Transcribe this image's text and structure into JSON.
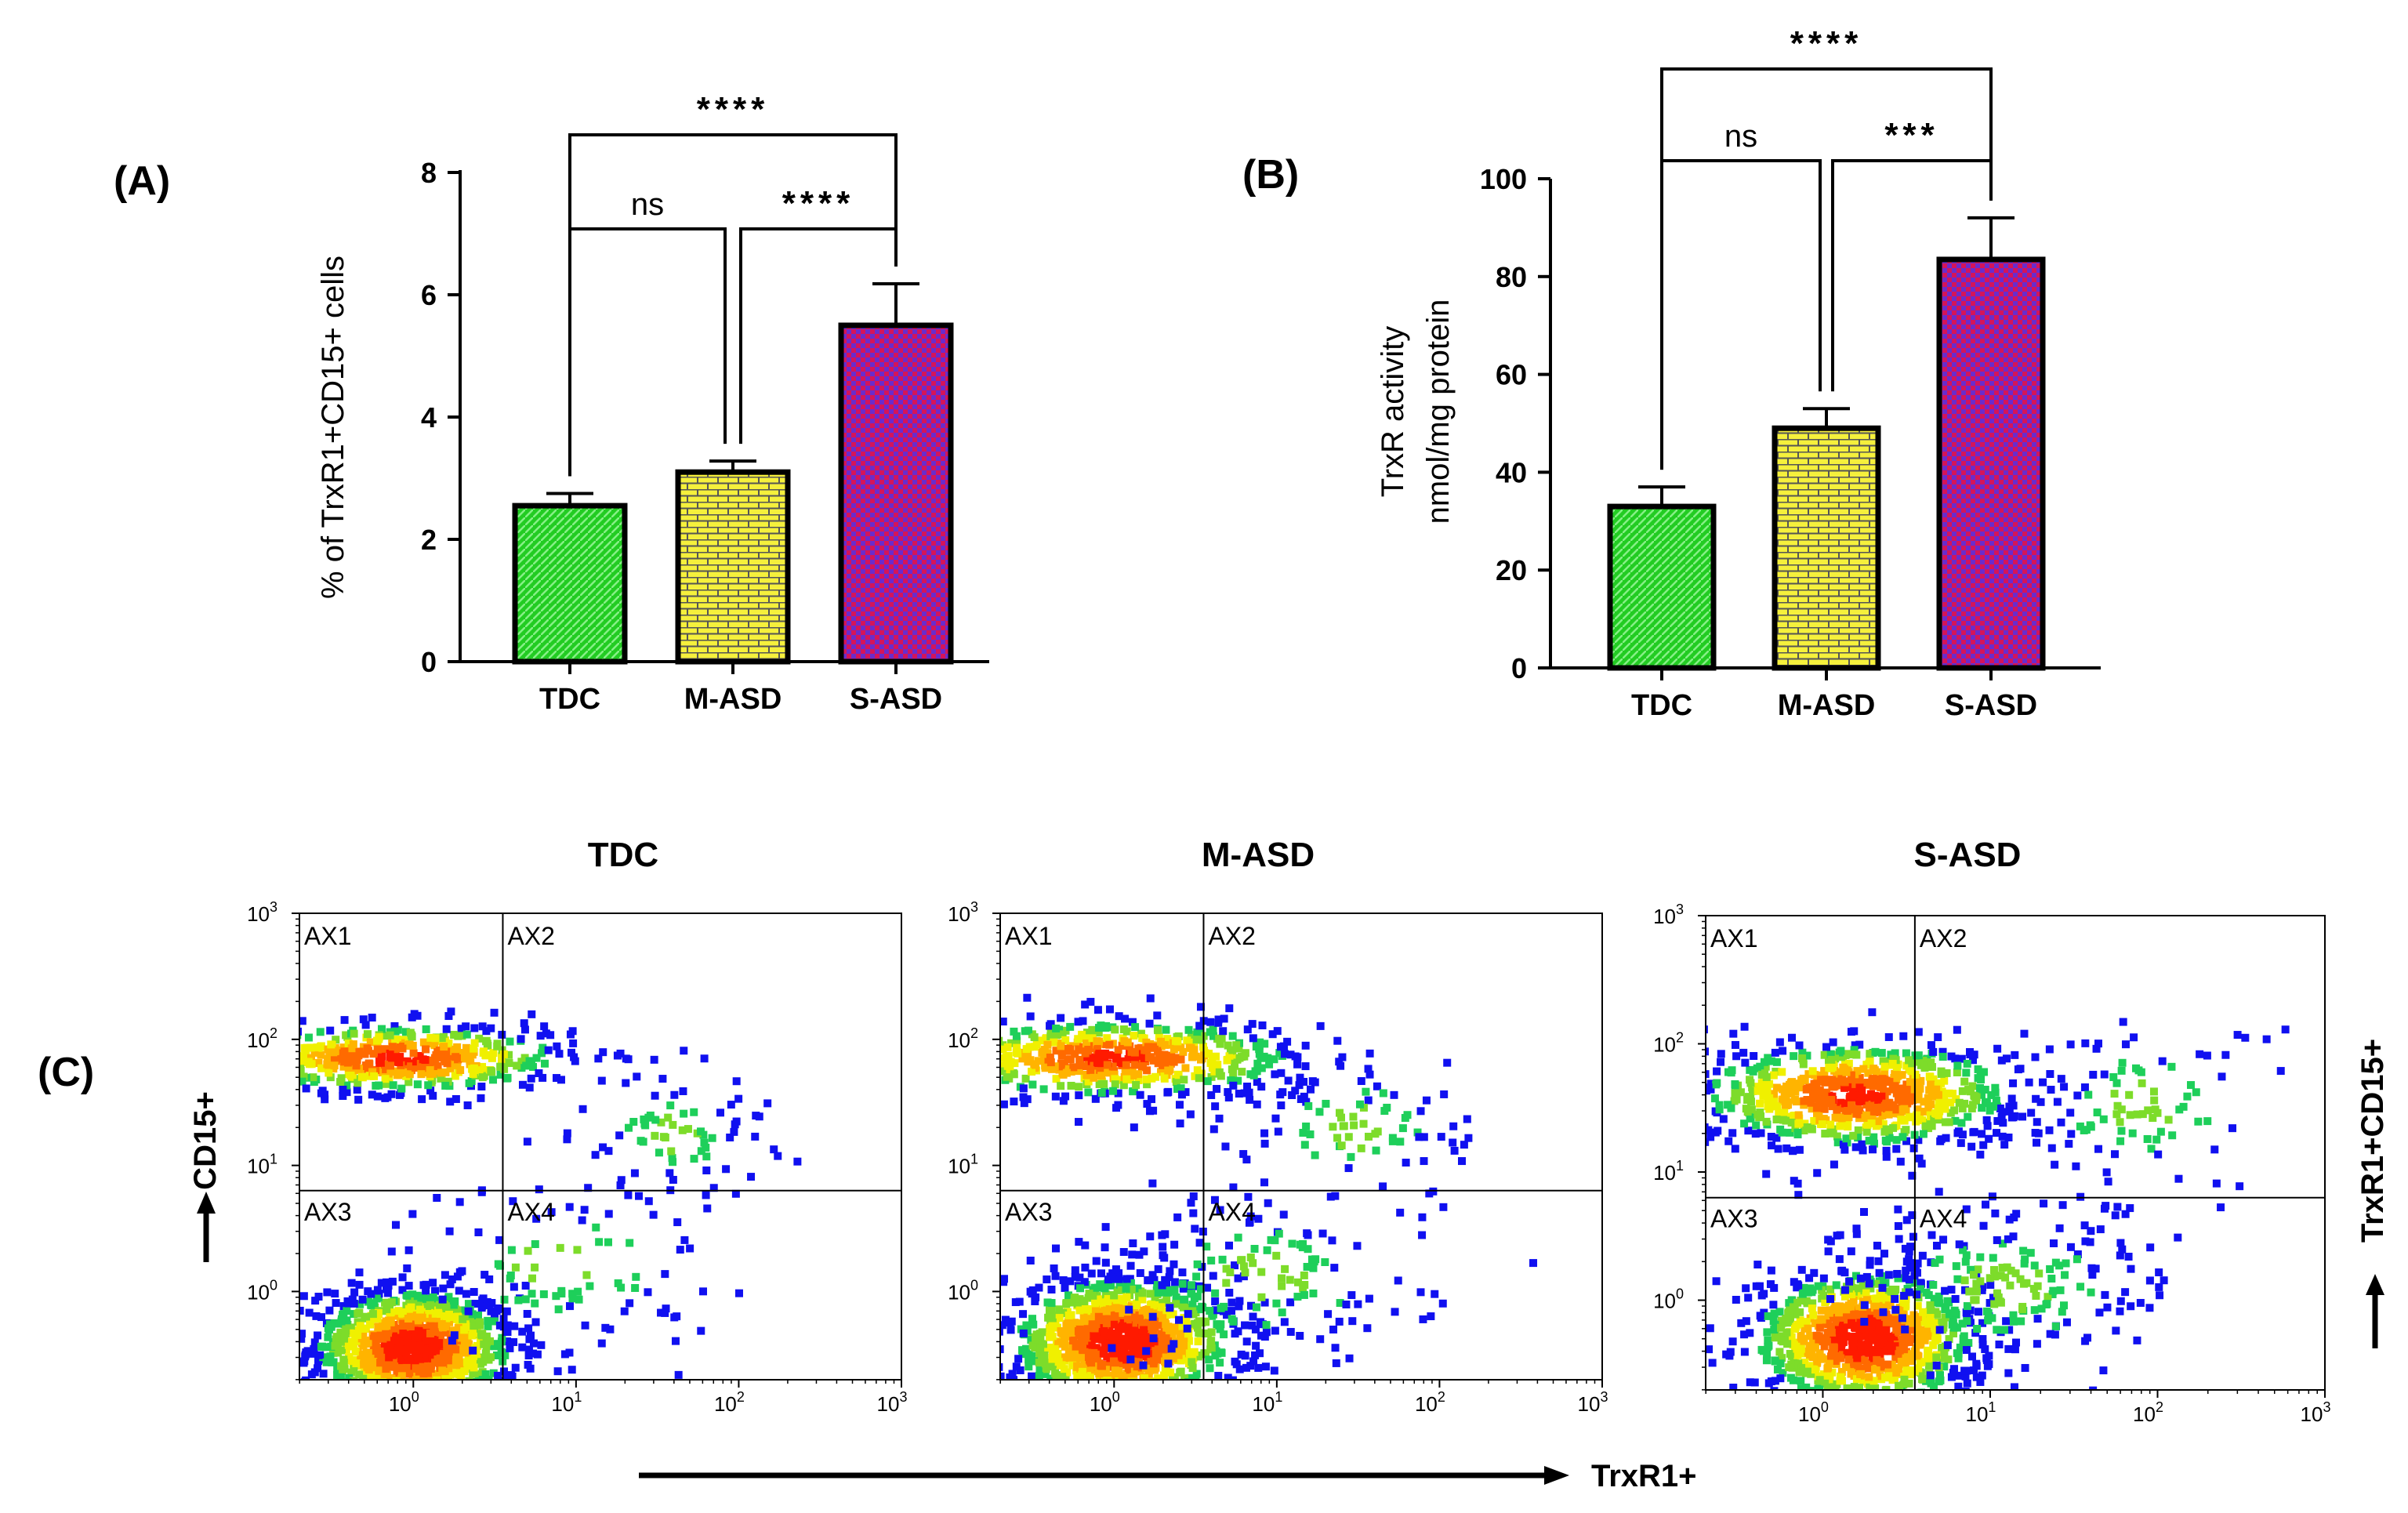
{
  "chart_data": [
    {
      "panel": "(A)",
      "type": "bar",
      "ylabel": "% of TrxR1+CD15+ cells",
      "categories": [
        "TDC",
        "M-ASD",
        "S-ASD"
      ],
      "values": [
        2.55,
        3.1,
        5.5
      ],
      "errors": [
        0.2,
        0.18,
        0.68
      ],
      "ylim": [
        0,
        8
      ],
      "yticks": [
        0,
        2,
        4,
        6,
        8
      ],
      "patterns": [
        "hatched",
        "brick",
        "checker"
      ],
      "colors": [
        "#22cc22",
        "#f5f03c",
        "#d4145a"
      ],
      "comparisons": [
        {
          "from": 0,
          "to": 1,
          "label": "ns"
        },
        {
          "from": 1,
          "to": 2,
          "label": "****"
        },
        {
          "from": 0,
          "to": 2,
          "label": "****"
        }
      ]
    },
    {
      "panel": "(B)",
      "type": "bar",
      "ylabel": "TrxR activity",
      "ylabel2": "nmol/mg protein",
      "categories": [
        "TDC",
        "M-ASD",
        "S-ASD"
      ],
      "values": [
        33,
        49,
        83.5
      ],
      "errors": [
        4,
        4,
        8.5
      ],
      "ylim": [
        0,
        100
      ],
      "yticks": [
        0,
        20,
        40,
        60,
        80,
        100
      ],
      "patterns": [
        "hatched",
        "brick",
        "checker"
      ],
      "colors": [
        "#22cc22",
        "#f5f03c",
        "#d4145a"
      ],
      "comparisons": [
        {
          "from": 0,
          "to": 1,
          "label": "ns"
        },
        {
          "from": 1,
          "to": 2,
          "label": "***"
        },
        {
          "from": 0,
          "to": 2,
          "label": "****"
        }
      ]
    },
    {
      "panel": "(C)",
      "type": "scatter",
      "subtype": "flow-cytometry-density-plot",
      "xlabel": "TrxR1+",
      "ylabel": "CD15+",
      "right_label": "TrxR1+CD15+",
      "log_ticks": [
        "10",
        "10",
        "10",
        "10"
      ],
      "log_exponents": [
        "0",
        "1",
        "2",
        "3"
      ],
      "log_range": [
        -0.7,
        3
      ],
      "quadrants": [
        "AX1",
        "AX2",
        "AX3",
        "AX4"
      ],
      "plots": [
        {
          "title": "TDC",
          "gate_x": 0.55,
          "gate_y": 0.8,
          "populations": [
            {
              "cx": 0.0,
              "cy": -0.45,
              "sx": 0.32,
              "sy": 0.25,
              "n": 1100
            },
            {
              "cx": -0.1,
              "cy": 1.85,
              "sx": 0.55,
              "sy": 0.14,
              "n": 550
            },
            {
              "cx": 1.6,
              "cy": 1.25,
              "sx": 0.3,
              "sy": 0.25,
              "n": 80
            },
            {
              "cx": 0.9,
              "cy": 0.2,
              "sx": 0.5,
              "sy": 0.35,
              "n": 90
            }
          ]
        },
        {
          "title": "M-ASD",
          "gate_x": 0.55,
          "gate_y": 0.8,
          "populations": [
            {
              "cx": 0.05,
              "cy": -0.4,
              "sx": 0.36,
              "sy": 0.27,
              "n": 1150
            },
            {
              "cx": 0.0,
              "cy": 1.85,
              "sx": 0.6,
              "sy": 0.16,
              "n": 600
            },
            {
              "cx": 1.5,
              "cy": 1.3,
              "sx": 0.35,
              "sy": 0.3,
              "n": 90
            },
            {
              "cx": 0.9,
              "cy": 0.1,
              "sx": 0.55,
              "sy": 0.35,
              "n": 150
            }
          ]
        },
        {
          "title": "S-ASD",
          "gate_x": 0.55,
          "gate_y": 0.8,
          "populations": [
            {
              "cx": 0.25,
              "cy": -0.3,
              "sx": 0.35,
              "sy": 0.28,
              "n": 950
            },
            {
              "cx": 0.2,
              "cy": 1.6,
              "sx": 0.5,
              "sy": 0.22,
              "n": 800
            },
            {
              "cx": 1.9,
              "cy": 1.5,
              "sx": 0.4,
              "sy": 0.35,
              "n": 90
            },
            {
              "cx": 1.1,
              "cy": 0.1,
              "sx": 0.5,
              "sy": 0.35,
              "n": 200
            }
          ]
        }
      ]
    }
  ]
}
